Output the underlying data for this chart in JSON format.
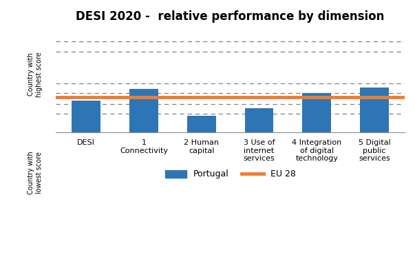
{
  "title": "DESI 2020 -  relative performance by dimension",
  "categories": [
    "DESI",
    "1\nConnectivity",
    "2 Human\ncapital",
    "3 Use of\ninternet\nservices",
    "4 Integration\nof digital\ntechnology",
    "5 Digital\npublic\nservices"
  ],
  "values": [
    42,
    58,
    22,
    32,
    52,
    60
  ],
  "bar_color": "#2E75B6",
  "eu28_line": 47,
  "eu28_color": "#ED7D31",
  "eu28_linewidth": 3.5,
  "ylabel_top": "Country with\nhighest score",
  "ylabel_bottom": "Country with\nlowest score",
  "legend_portugal": "Portugal",
  "legend_eu28": "EU 28",
  "ylim": [
    0,
    140
  ],
  "hlines": [
    25,
    38,
    52,
    65,
    108,
    122
  ],
  "background_color": "#ffffff",
  "title_fontsize": 12,
  "bar_width": 0.5
}
